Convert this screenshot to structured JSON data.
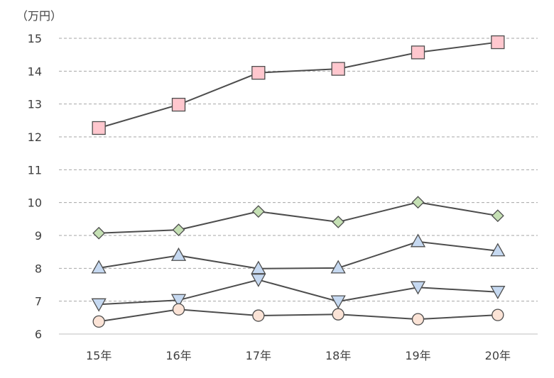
{
  "chart_data": {
    "type": "line",
    "unit_label": "（万円）",
    "categories": [
      "15年",
      "16年",
      "17年",
      "18年",
      "19年",
      "20年"
    ],
    "ylim": [
      6,
      15
    ],
    "yticks": [
      6,
      7,
      8,
      9,
      10,
      11,
      12,
      13,
      14,
      15
    ],
    "grid": true,
    "series": [
      {
        "marker": "square",
        "fill": "#FFC7CE",
        "values": [
          12.27,
          12.98,
          13.95,
          14.07,
          14.57,
          14.88
        ]
      },
      {
        "marker": "diamond",
        "fill": "#C5E0B4",
        "values": [
          9.07,
          9.17,
          9.73,
          9.41,
          10.01,
          9.6
        ]
      },
      {
        "marker": "triangle-up",
        "fill": "#C6D9F1",
        "values": [
          8.01,
          8.39,
          7.99,
          8.01,
          8.81,
          8.53
        ]
      },
      {
        "marker": "triangle-down",
        "fill": "#C6D9F1",
        "values": [
          6.9,
          7.03,
          7.65,
          6.99,
          7.42,
          7.28
        ]
      },
      {
        "marker": "circle",
        "fill": "#FBE3D6",
        "values": [
          6.38,
          6.75,
          6.56,
          6.6,
          6.45,
          6.58
        ]
      }
    ],
    "line_color": "#4D4D4D",
    "grid_color": "#A6A6A6",
    "axis_color": "#BFBFBF"
  }
}
